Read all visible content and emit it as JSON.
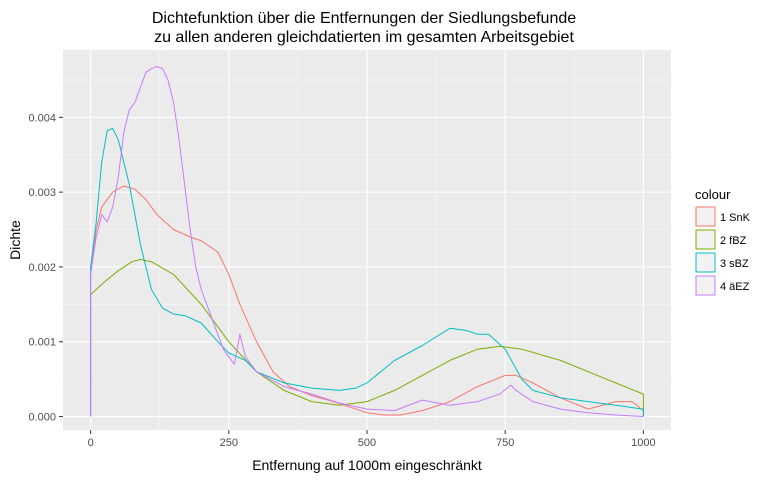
{
  "chart_data": {
    "type": "line",
    "title_line1": "Dichtefunktion über die Entfernungen der Siedlungsbefunde",
    "title_line2": "zu allen anderen gleichdatierten im gesamten Arbeitsgebiet",
    "xlabel": "Entfernung auf 1000m eingeschränkt",
    "ylabel": "Dichte",
    "xlim": [
      -50,
      1050
    ],
    "ylim": [
      -0.00018,
      0.0049
    ],
    "x_ticks": [
      0,
      250,
      500,
      750,
      1000
    ],
    "x_tick_labels": [
      "0",
      "250",
      "500",
      "750",
      "1000"
    ],
    "y_ticks": [
      0,
      0.001,
      0.002,
      0.003,
      0.004
    ],
    "y_tick_labels": [
      "0.000",
      "0.001",
      "0.002",
      "0.003",
      "0.004"
    ],
    "grid": true,
    "panel_background": "#ebebeb",
    "legend": {
      "title": "colour",
      "position": "right"
    },
    "series": [
      {
        "name": "1 SnK",
        "color": "#F8766D",
        "x": [
          0,
          10,
          20,
          40,
          60,
          80,
          100,
          120,
          150,
          180,
          200,
          230,
          250,
          270,
          300,
          330,
          360,
          400,
          430,
          460,
          500,
          530,
          560,
          600,
          650,
          700,
          750,
          770,
          800,
          850,
          900,
          950,
          980,
          1000
        ],
        "y": [
          0.0019,
          0.0025,
          0.0028,
          0.003,
          0.00308,
          0.00304,
          0.0029,
          0.0027,
          0.0025,
          0.0024,
          0.00235,
          0.0022,
          0.0019,
          0.0015,
          0.001,
          0.0006,
          0.0004,
          0.00028,
          0.00022,
          0.00015,
          5e-05,
          2e-05,
          2e-05,
          8e-05,
          0.0002,
          0.0004,
          0.00055,
          0.00055,
          0.00045,
          0.00025,
          0.0001,
          0.0002,
          0.0002,
          8e-05
        ]
      },
      {
        "name": "2 fBZ",
        "color": "#7CAE00",
        "x": [
          0,
          25,
          50,
          75,
          90,
          110,
          150,
          200,
          250,
          300,
          350,
          400,
          450,
          500,
          550,
          600,
          650,
          700,
          740,
          780,
          850,
          900,
          950,
          1000
        ],
        "y": [
          0.00163,
          0.0018,
          0.00195,
          0.00207,
          0.0021,
          0.00207,
          0.0019,
          0.0015,
          0.001,
          0.0006,
          0.00035,
          0.0002,
          0.00015,
          0.0002,
          0.00035,
          0.00055,
          0.00075,
          0.0009,
          0.00094,
          0.0009,
          0.00075,
          0.0006,
          0.00045,
          0.0003
        ]
      },
      {
        "name": "3 sBZ",
        "color": "#00BFC4",
        "x": [
          0,
          10,
          20,
          30,
          40,
          50,
          70,
          90,
          110,
          130,
          150,
          170,
          200,
          230,
          250,
          280,
          300,
          350,
          400,
          450,
          480,
          500,
          550,
          600,
          650,
          680,
          700,
          720,
          750,
          780,
          800,
          850,
          900,
          950,
          1000
        ],
        "y": [
          0.002,
          0.0026,
          0.0034,
          0.00382,
          0.00385,
          0.0037,
          0.0031,
          0.0023,
          0.0017,
          0.00145,
          0.00137,
          0.00135,
          0.00125,
          0.001,
          0.00085,
          0.00075,
          0.0006,
          0.00045,
          0.00038,
          0.00035,
          0.00038,
          0.00045,
          0.00075,
          0.00095,
          0.00118,
          0.00115,
          0.0011,
          0.0011,
          0.0009,
          0.0005,
          0.00035,
          0.00025,
          0.0002,
          0.00015,
          0.0001
        ]
      },
      {
        "name": "4 äEZ",
        "color": "#C77CFF",
        "x": [
          0,
          10,
          20,
          30,
          40,
          50,
          60,
          70,
          80,
          90,
          100,
          110,
          120,
          130,
          140,
          150,
          160,
          170,
          180,
          190,
          200,
          210,
          220,
          240,
          260,
          270,
          280,
          300,
          350,
          400,
          450,
          500,
          550,
          600,
          650,
          700,
          720,
          740,
          760,
          770,
          800,
          850,
          900,
          950,
          1000
        ],
        "y": [
          0.0019,
          0.0024,
          0.0027,
          0.0026,
          0.0028,
          0.0032,
          0.0038,
          0.0041,
          0.0042,
          0.0044,
          0.0046,
          0.00465,
          0.00468,
          0.00465,
          0.0045,
          0.0042,
          0.0037,
          0.0031,
          0.0025,
          0.002,
          0.0017,
          0.0015,
          0.0013,
          0.0009,
          0.0007,
          0.0011,
          0.0008,
          0.0006,
          0.0004,
          0.0003,
          0.00018,
          0.0001,
          8e-05,
          0.00022,
          0.00015,
          0.0002,
          0.00025,
          0.0003,
          0.00042,
          0.00035,
          0.0002,
          0.0001,
          5e-05,
          2e-05,
          0.0
        ]
      }
    ]
  }
}
